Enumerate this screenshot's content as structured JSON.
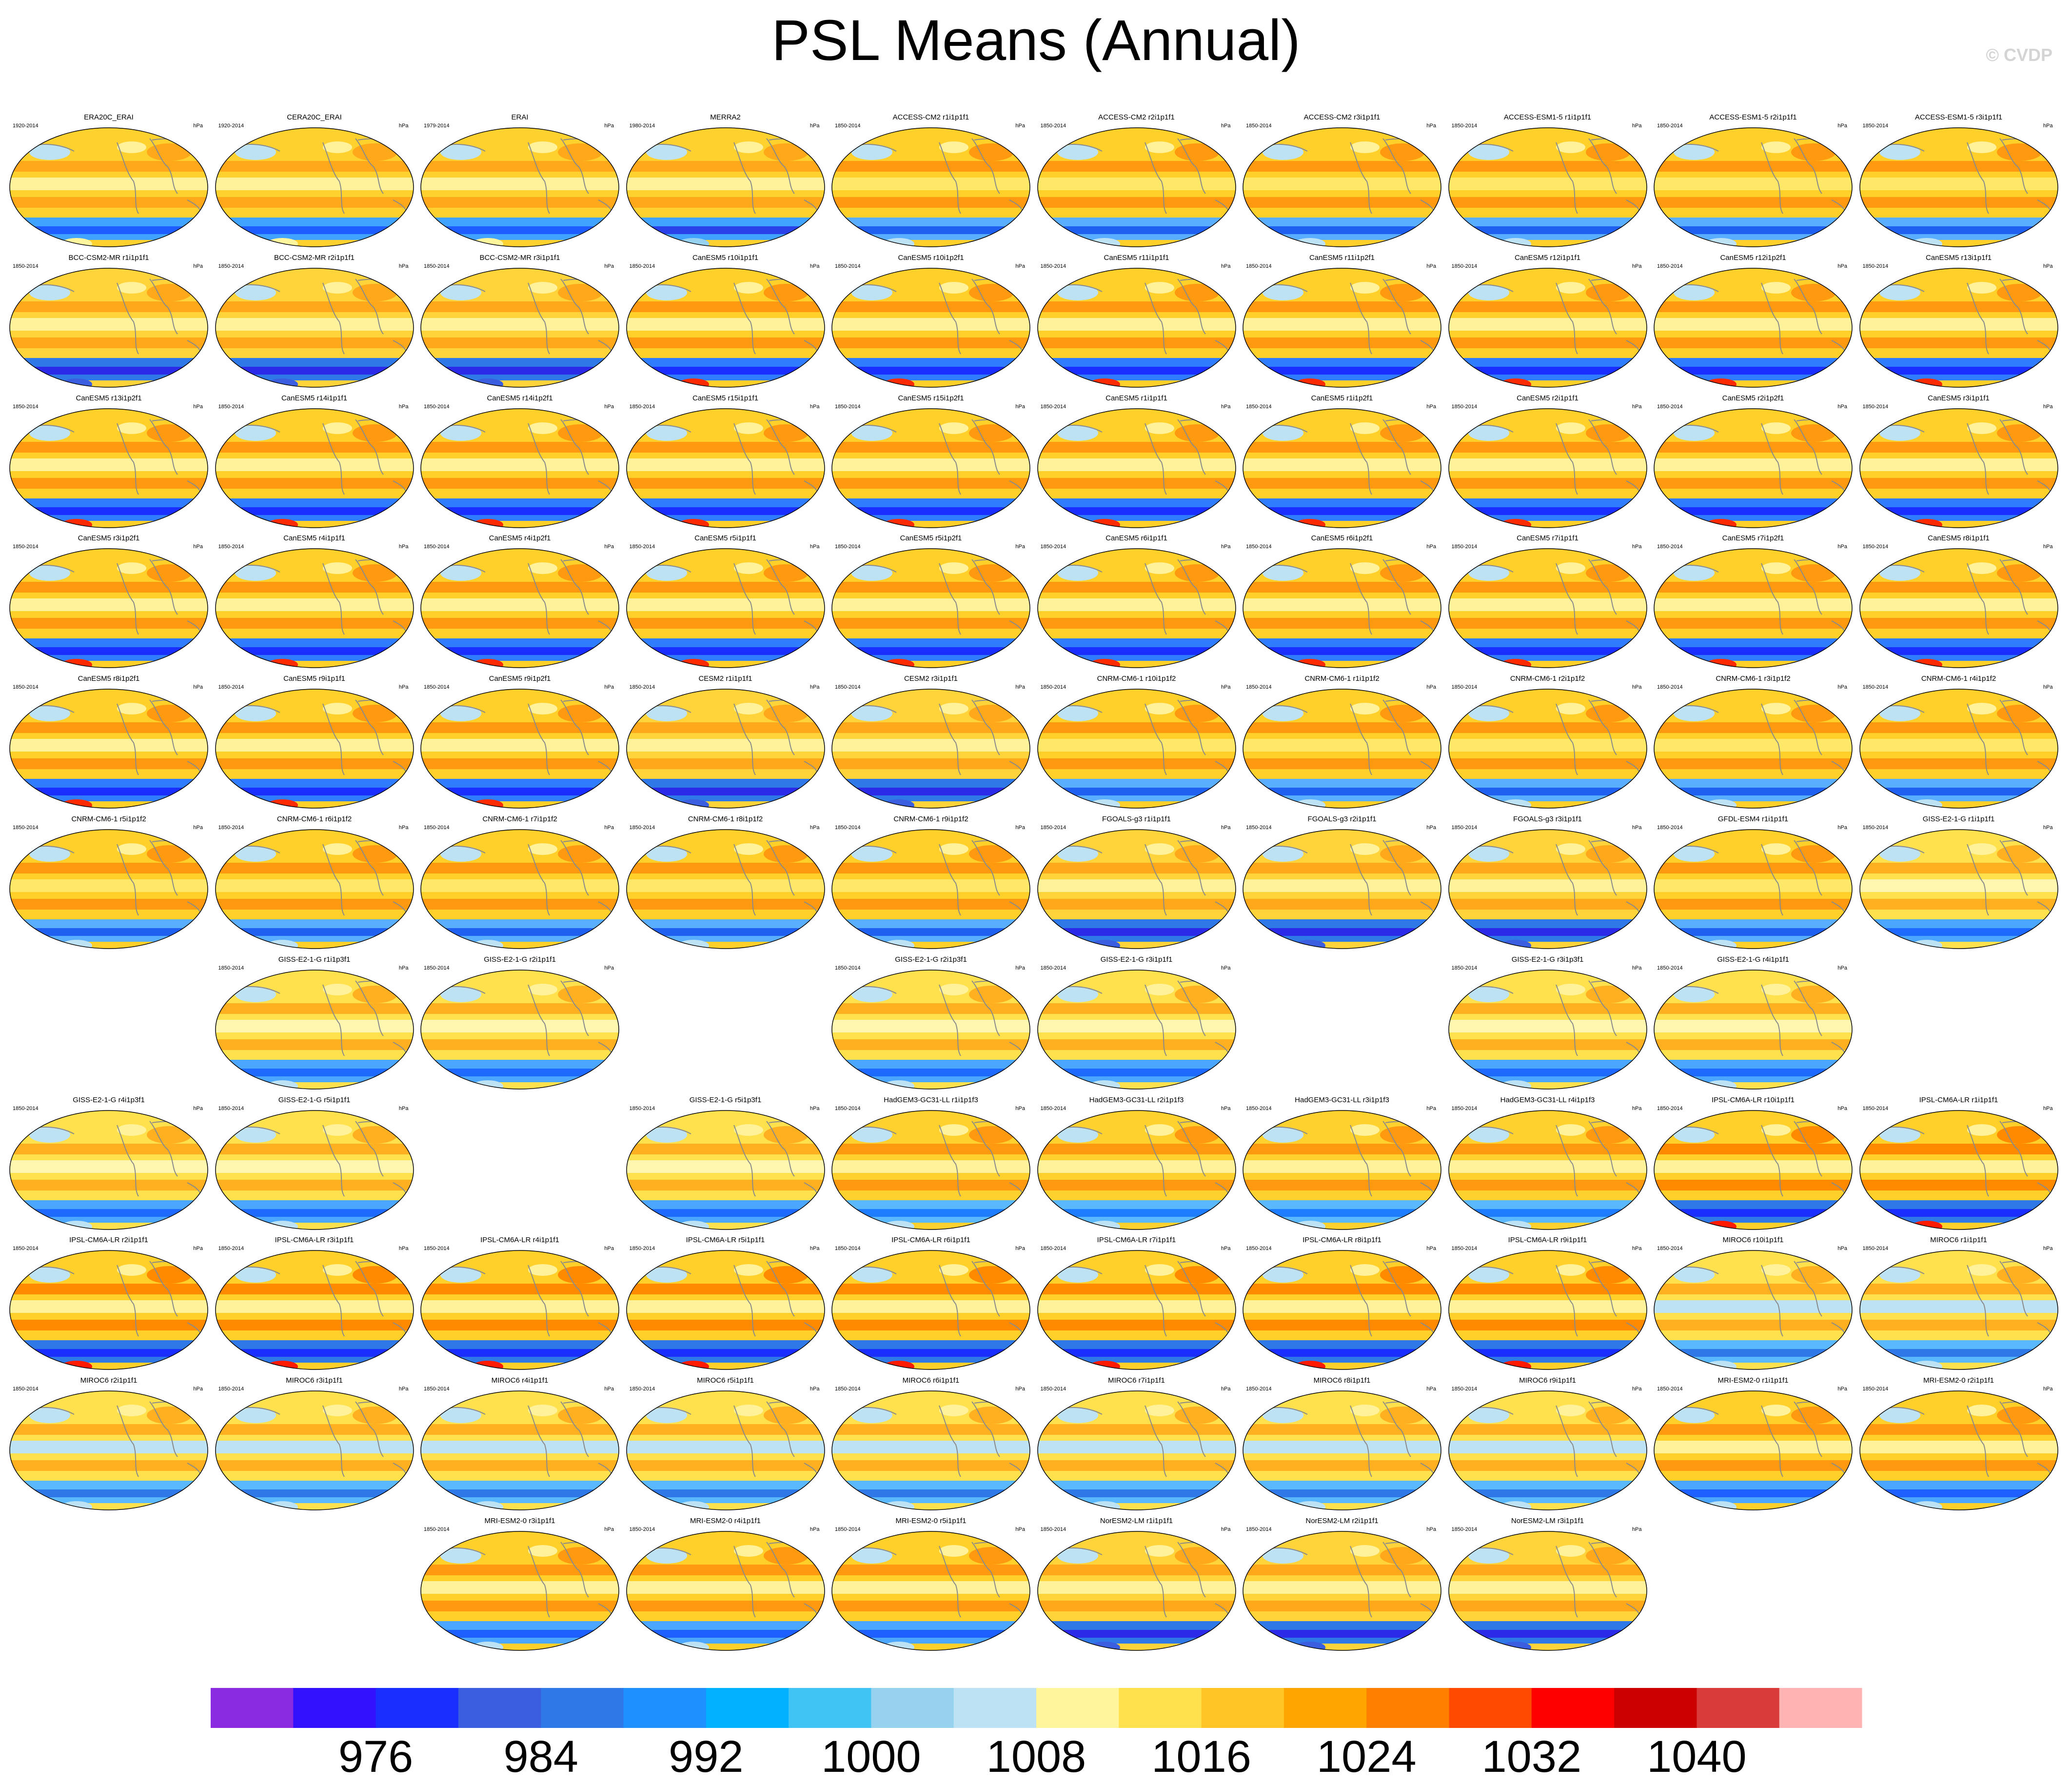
{
  "figure": {
    "title": "PSL Means (Annual)",
    "watermark": "© CVDP"
  },
  "chart_data": {
    "type": "heatmap",
    "title": "PSL Means (Annual)",
    "units": "hPa",
    "layout": "grid 11 rows x 10 columns of global map panels",
    "colorbar": {
      "tick_labels": [
        "976",
        "984",
        "992",
        "1000",
        "1008",
        "1016",
        "1024",
        "1032",
        "1040"
      ],
      "colors": [
        "#8a2be2",
        "#3311ff",
        "#1a2fff",
        "#3b5ee0",
        "#2f78e8",
        "#1e90ff",
        "#00b2ff",
        "#3fc4f4",
        "#96d2f0",
        "#bde2f4",
        "#fff59d",
        "#ffe14d",
        "#ffc425",
        "#ffa500",
        "#ff8000",
        "#ff4a00",
        "#ff0000",
        "#cc0000",
        "#d93a3a",
        "#ffb3b3"
      ]
    },
    "panels": [
      {
        "row": 0,
        "col": 0,
        "title": "ERA20C_ERAI",
        "years": "1920-2014",
        "units": "hPa",
        "style": "obs"
      },
      {
        "row": 0,
        "col": 1,
        "title": "CERA20C_ERAI",
        "years": "1920-2014",
        "units": "hPa",
        "style": "obs"
      },
      {
        "row": 0,
        "col": 2,
        "title": "ERAI",
        "years": "1979-2014",
        "units": "hPa",
        "style": "obs"
      },
      {
        "row": 0,
        "col": 3,
        "title": "MERRA2",
        "years": "1980-2014",
        "units": "hPa",
        "style": "obs2"
      },
      {
        "row": 0,
        "col": 4,
        "title": "ACCESS-CM2 r1i1p1f1",
        "years": "1850-2014",
        "units": "hPa",
        "style": "warm"
      },
      {
        "row": 0,
        "col": 5,
        "title": "ACCESS-CM2 r2i1p1f1",
        "years": "1850-2014",
        "units": "hPa",
        "style": "warm"
      },
      {
        "row": 0,
        "col": 6,
        "title": "ACCESS-CM2 r3i1p1f1",
        "years": "1850-2014",
        "units": "hPa",
        "style": "warm"
      },
      {
        "row": 0,
        "col": 7,
        "title": "ACCESS-ESM1-5 r1i1p1f1",
        "years": "1850-2014",
        "units": "hPa",
        "style": "warm"
      },
      {
        "row": 0,
        "col": 8,
        "title": "ACCESS-ESM1-5 r2i1p1f1",
        "years": "1850-2014",
        "units": "hPa",
        "style": "warm"
      },
      {
        "row": 0,
        "col": 9,
        "title": "ACCESS-ESM1-5 r3i1p1f1",
        "years": "1850-2014",
        "units": "hPa",
        "style": "warm"
      },
      {
        "row": 1,
        "col": 0,
        "title": "BCC-CSM2-MR r1i1p1f1",
        "years": "1850-2014",
        "units": "hPa",
        "style": "deep"
      },
      {
        "row": 1,
        "col": 1,
        "title": "BCC-CSM2-MR r2i1p1f1",
        "years": "1850-2014",
        "units": "hPa",
        "style": "deep"
      },
      {
        "row": 1,
        "col": 2,
        "title": "BCC-CSM2-MR r3i1p1f1",
        "years": "1850-2014",
        "units": "hPa",
        "style": "deep"
      },
      {
        "row": 1,
        "col": 3,
        "title": "CanESM5 r10i1p1f1",
        "years": "1850-2014",
        "units": "hPa",
        "style": "can"
      },
      {
        "row": 1,
        "col": 4,
        "title": "CanESM5 r10i1p2f1",
        "years": "1850-2014",
        "units": "hPa",
        "style": "can"
      },
      {
        "row": 1,
        "col": 5,
        "title": "CanESM5 r11i1p1f1",
        "years": "1850-2014",
        "units": "hPa",
        "style": "can"
      },
      {
        "row": 1,
        "col": 6,
        "title": "CanESM5 r11i1p2f1",
        "years": "1850-2014",
        "units": "hPa",
        "style": "can"
      },
      {
        "row": 1,
        "col": 7,
        "title": "CanESM5 r12i1p1f1",
        "years": "1850-2014",
        "units": "hPa",
        "style": "can"
      },
      {
        "row": 1,
        "col": 8,
        "title": "CanESM5 r12i1p2f1",
        "years": "1850-2014",
        "units": "hPa",
        "style": "can"
      },
      {
        "row": 1,
        "col": 9,
        "title": "CanESM5 r13i1p1f1",
        "years": "1850-2014",
        "units": "hPa",
        "style": "can"
      },
      {
        "row": 2,
        "col": 0,
        "title": "CanESM5 r13i1p2f1",
        "years": "1850-2014",
        "units": "hPa",
        "style": "can"
      },
      {
        "row": 2,
        "col": 1,
        "title": "CanESM5 r14i1p1f1",
        "years": "1850-2014",
        "units": "hPa",
        "style": "can"
      },
      {
        "row": 2,
        "col": 2,
        "title": "CanESM5 r14i1p2f1",
        "years": "1850-2014",
        "units": "hPa",
        "style": "can"
      },
      {
        "row": 2,
        "col": 3,
        "title": "CanESM5 r15i1p1f1",
        "years": "1850-2014",
        "units": "hPa",
        "style": "can"
      },
      {
        "row": 2,
        "col": 4,
        "title": "CanESM5 r15i1p2f1",
        "years": "1850-2014",
        "units": "hPa",
        "style": "can"
      },
      {
        "row": 2,
        "col": 5,
        "title": "CanESM5 r1i1p1f1",
        "years": "1850-2014",
        "units": "hPa",
        "style": "can"
      },
      {
        "row": 2,
        "col": 6,
        "title": "CanESM5 r1i1p2f1",
        "years": "1850-2014",
        "units": "hPa",
        "style": "can"
      },
      {
        "row": 2,
        "col": 7,
        "title": "CanESM5 r2i1p1f1",
        "years": "1850-2014",
        "units": "hPa",
        "style": "can"
      },
      {
        "row": 2,
        "col": 8,
        "title": "CanESM5 r2i1p2f1",
        "years": "1850-2014",
        "units": "hPa",
        "style": "can"
      },
      {
        "row": 2,
        "col": 9,
        "title": "CanESM5 r3i1p1f1",
        "years": "1850-2014",
        "units": "hPa",
        "style": "can"
      },
      {
        "row": 3,
        "col": 0,
        "title": "CanESM5 r3i1p2f1",
        "years": "1850-2014",
        "units": "hPa",
        "style": "can"
      },
      {
        "row": 3,
        "col": 1,
        "title": "CanESM5 r4i1p1f1",
        "years": "1850-2014",
        "units": "hPa",
        "style": "can"
      },
      {
        "row": 3,
        "col": 2,
        "title": "CanESM5 r4i1p2f1",
        "years": "1850-2014",
        "units": "hPa",
        "style": "can"
      },
      {
        "row": 3,
        "col": 3,
        "title": "CanESM5 r5i1p1f1",
        "years": "1850-2014",
        "units": "hPa",
        "style": "can"
      },
      {
        "row": 3,
        "col": 4,
        "title": "CanESM5 r5i1p2f1",
        "years": "1850-2014",
        "units": "hPa",
        "style": "can"
      },
      {
        "row": 3,
        "col": 5,
        "title": "CanESM5 r6i1p1f1",
        "years": "1850-2014",
        "units": "hPa",
        "style": "can"
      },
      {
        "row": 3,
        "col": 6,
        "title": "CanESM5 r6i1p2f1",
        "years": "1850-2014",
        "units": "hPa",
        "style": "can"
      },
      {
        "row": 3,
        "col": 7,
        "title": "CanESM5 r7i1p1f1",
        "years": "1850-2014",
        "units": "hPa",
        "style": "can"
      },
      {
        "row": 3,
        "col": 8,
        "title": "CanESM5 r7i1p2f1",
        "years": "1850-2014",
        "units": "hPa",
        "style": "can"
      },
      {
        "row": 3,
        "col": 9,
        "title": "CanESM5 r8i1p1f1",
        "years": "1850-2014",
        "units": "hPa",
        "style": "can"
      },
      {
        "row": 4,
        "col": 0,
        "title": "CanESM5 r8i1p2f1",
        "years": "1850-2014",
        "units": "hPa",
        "style": "can"
      },
      {
        "row": 4,
        "col": 1,
        "title": "CanESM5 r9i1p1f1",
        "years": "1850-2014",
        "units": "hPa",
        "style": "can"
      },
      {
        "row": 4,
        "col": 2,
        "title": "CanESM5 r9i1p2f1",
        "years": "1850-2014",
        "units": "hPa",
        "style": "can"
      },
      {
        "row": 4,
        "col": 3,
        "title": "CESM2 r1i1p1f1",
        "years": "1850-2014",
        "units": "hPa",
        "style": "deep"
      },
      {
        "row": 4,
        "col": 4,
        "title": "CESM2 r3i1p1f1",
        "years": "1850-2014",
        "units": "hPa",
        "style": "deep"
      },
      {
        "row": 4,
        "col": 5,
        "title": "CNRM-CM6-1 r10i1p1f2",
        "years": "1850-2014",
        "units": "hPa",
        "style": "warm"
      },
      {
        "row": 4,
        "col": 6,
        "title": "CNRM-CM6-1 r1i1p1f2",
        "years": "1850-2014",
        "units": "hPa",
        "style": "warm"
      },
      {
        "row": 4,
        "col": 7,
        "title": "CNRM-CM6-1 r2i1p1f2",
        "years": "1850-2014",
        "units": "hPa",
        "style": "warm"
      },
      {
        "row": 4,
        "col": 8,
        "title": "CNRM-CM6-1 r3i1p1f2",
        "years": "1850-2014",
        "units": "hPa",
        "style": "warm"
      },
      {
        "row": 4,
        "col": 9,
        "title": "CNRM-CM6-1 r4i1p1f2",
        "years": "1850-2014",
        "units": "hPa",
        "style": "warm"
      },
      {
        "row": 5,
        "col": 0,
        "title": "CNRM-CM6-1 r5i1p1f2",
        "years": "1850-2014",
        "units": "hPa",
        "style": "warm"
      },
      {
        "row": 5,
        "col": 1,
        "title": "CNRM-CM6-1 r6i1p1f2",
        "years": "1850-2014",
        "units": "hPa",
        "style": "warm"
      },
      {
        "row": 5,
        "col": 2,
        "title": "CNRM-CM6-1 r7i1p1f2",
        "years": "1850-2014",
        "units": "hPa",
        "style": "warm"
      },
      {
        "row": 5,
        "col": 3,
        "title": "CNRM-CM6-1 r8i1p1f2",
        "years": "1850-2014",
        "units": "hPa",
        "style": "warm"
      },
      {
        "row": 5,
        "col": 4,
        "title": "CNRM-CM6-1 r9i1p1f2",
        "years": "1850-2014",
        "units": "hPa",
        "style": "warm"
      },
      {
        "row": 5,
        "col": 5,
        "title": "FGOALS-g3 r1i1p1f1",
        "years": "1850-2014",
        "units": "hPa",
        "style": "deep"
      },
      {
        "row": 5,
        "col": 6,
        "title": "FGOALS-g3 r2i1p1f1",
        "years": "1850-2014",
        "units": "hPa",
        "style": "deep"
      },
      {
        "row": 5,
        "col": 7,
        "title": "FGOALS-g3 r3i1p1f1",
        "years": "1850-2014",
        "units": "hPa",
        "style": "deep"
      },
      {
        "row": 5,
        "col": 8,
        "title": "GFDL-ESM4 r1i1p1f1",
        "years": "1850-2014",
        "units": "hPa",
        "style": "warm"
      },
      {
        "row": 5,
        "col": 9,
        "title": "GISS-E2-1-G r1i1p1f1",
        "years": "1850-2014",
        "units": "hPa",
        "style": "giss"
      },
      {
        "row": 6,
        "col": 1,
        "title": "GISS-E2-1-G r1i1p3f1",
        "years": "1850-2014",
        "units": "hPa",
        "style": "giss"
      },
      {
        "row": 6,
        "col": 2,
        "title": "GISS-E2-1-G r2i1p1f1",
        "years": "1850-2014",
        "units": "hPa",
        "style": "giss"
      },
      {
        "row": 6,
        "col": 4,
        "title": "GISS-E2-1-G r2i1p3f1",
        "years": "1850-2014",
        "units": "hPa",
        "style": "giss"
      },
      {
        "row": 6,
        "col": 5,
        "title": "GISS-E2-1-G r3i1p1f1",
        "years": "1850-2014",
        "units": "hPa",
        "style": "giss"
      },
      {
        "row": 6,
        "col": 7,
        "title": "GISS-E2-1-G r3i1p3f1",
        "years": "1850-2014",
        "units": "hPa",
        "style": "giss"
      },
      {
        "row": 6,
        "col": 8,
        "title": "GISS-E2-1-G r4i1p1f1",
        "years": "1850-2014",
        "units": "hPa",
        "style": "giss"
      },
      {
        "row": 7,
        "col": 0,
        "title": "GISS-E2-1-G r4i1p3f1",
        "years": "1850-2014",
        "units": "hPa",
        "style": "giss"
      },
      {
        "row": 7,
        "col": 1,
        "title": "GISS-E2-1-G r5i1p1f1",
        "years": "1850-2014",
        "units": "hPa",
        "style": "giss"
      },
      {
        "row": 7,
        "col": 3,
        "title": "GISS-E2-1-G r5i1p3f1",
        "years": "1850-2014",
        "units": "hPa",
        "style": "giss"
      },
      {
        "row": 7,
        "col": 4,
        "title": "HadGEM3-GC31-LL r1i1p1f3",
        "years": "1850-2014",
        "units": "hPa",
        "style": "had"
      },
      {
        "row": 7,
        "col": 5,
        "title": "HadGEM3-GC31-LL r2i1p1f3",
        "years": "1850-2014",
        "units": "hPa",
        "style": "had"
      },
      {
        "row": 7,
        "col": 6,
        "title": "HadGEM3-GC31-LL r3i1p1f3",
        "years": "1850-2014",
        "units": "hPa",
        "style": "had"
      },
      {
        "row": 7,
        "col": 7,
        "title": "HadGEM3-GC31-LL r4i1p1f3",
        "years": "1850-2014",
        "units": "hPa",
        "style": "had"
      },
      {
        "row": 7,
        "col": 8,
        "title": "IPSL-CM6A-LR r10i1p1f1",
        "years": "1850-2014",
        "units": "hPa",
        "style": "ipsl"
      },
      {
        "row": 7,
        "col": 9,
        "title": "IPSL-CM6A-LR r1i1p1f1",
        "years": "1850-2014",
        "units": "hPa",
        "style": "ipsl"
      },
      {
        "row": 8,
        "col": 0,
        "title": "IPSL-CM6A-LR r2i1p1f1",
        "years": "1850-2014",
        "units": "hPa",
        "style": "ipsl"
      },
      {
        "row": 8,
        "col": 1,
        "title": "IPSL-CM6A-LR r3i1p1f1",
        "years": "1850-2014",
        "units": "hPa",
        "style": "ipsl"
      },
      {
        "row": 8,
        "col": 2,
        "title": "IPSL-CM6A-LR r4i1p1f1",
        "years": "1850-2014",
        "units": "hPa",
        "style": "ipsl"
      },
      {
        "row": 8,
        "col": 3,
        "title": "IPSL-CM6A-LR r5i1p1f1",
        "years": "1850-2014",
        "units": "hPa",
        "style": "ipsl"
      },
      {
        "row": 8,
        "col": 4,
        "title": "IPSL-CM6A-LR r6i1p1f1",
        "years": "1850-2014",
        "units": "hPa",
        "style": "ipsl"
      },
      {
        "row": 8,
        "col": 5,
        "title": "IPSL-CM6A-LR r7i1p1f1",
        "years": "1850-2014",
        "units": "hPa",
        "style": "ipsl"
      },
      {
        "row": 8,
        "col": 6,
        "title": "IPSL-CM6A-LR r8i1p1f1",
        "years": "1850-2014",
        "units": "hPa",
        "style": "ipsl"
      },
      {
        "row": 8,
        "col": 7,
        "title": "IPSL-CM6A-LR r9i1p1f1",
        "years": "1850-2014",
        "units": "hPa",
        "style": "ipsl"
      },
      {
        "row": 8,
        "col": 8,
        "title": "MIROC6 r10i1p1f1",
        "years": "1850-2014",
        "units": "hPa",
        "style": "miroc"
      },
      {
        "row": 8,
        "col": 9,
        "title": "MIROC6 r1i1p1f1",
        "years": "1850-2014",
        "units": "hPa",
        "style": "miroc"
      },
      {
        "row": 9,
        "col": 0,
        "title": "MIROC6 r2i1p1f1",
        "years": "1850-2014",
        "units": "hPa",
        "style": "miroc"
      },
      {
        "row": 9,
        "col": 1,
        "title": "MIROC6 r3i1p1f1",
        "years": "1850-2014",
        "units": "hPa",
        "style": "miroc"
      },
      {
        "row": 9,
        "col": 2,
        "title": "MIROC6 r4i1p1f1",
        "years": "1850-2014",
        "units": "hPa",
        "style": "miroc"
      },
      {
        "row": 9,
        "col": 3,
        "title": "MIROC6 r5i1p1f1",
        "years": "1850-2014",
        "units": "hPa",
        "style": "miroc"
      },
      {
        "row": 9,
        "col": 4,
        "title": "MIROC6 r6i1p1f1",
        "years": "1850-2014",
        "units": "hPa",
        "style": "miroc"
      },
      {
        "row": 9,
        "col": 5,
        "title": "MIROC6 r7i1p1f1",
        "years": "1850-2014",
        "units": "hPa",
        "style": "miroc"
      },
      {
        "row": 9,
        "col": 6,
        "title": "MIROC6 r8i1p1f1",
        "years": "1850-2014",
        "units": "hPa",
        "style": "miroc"
      },
      {
        "row": 9,
        "col": 7,
        "title": "MIROC6 r9i1p1f1",
        "years": "1850-2014",
        "units": "hPa",
        "style": "miroc"
      },
      {
        "row": 9,
        "col": 8,
        "title": "MRI-ESM2-0 r1i1p1f1",
        "years": "1850-2014",
        "units": "hPa",
        "style": "mri"
      },
      {
        "row": 9,
        "col": 9,
        "title": "MRI-ESM2-0 r2i1p1f1",
        "years": "1850-2014",
        "units": "hPa",
        "style": "mri"
      },
      {
        "row": 10,
        "col": 2,
        "title": "MRI-ESM2-0 r3i1p1f1",
        "years": "1850-2014",
        "units": "hPa",
        "style": "mri"
      },
      {
        "row": 10,
        "col": 3,
        "title": "MRI-ESM2-0 r4i1p1f1",
        "years": "1850-2014",
        "units": "hPa",
        "style": "mri"
      },
      {
        "row": 10,
        "col": 4,
        "title": "MRI-ESM2-0 r5i1p1f1",
        "years": "1850-2014",
        "units": "hPa",
        "style": "mri"
      },
      {
        "row": 10,
        "col": 5,
        "title": "NorESM2-LM r1i1p1f1",
        "years": "1850-2014",
        "units": "hPa",
        "style": "deep"
      },
      {
        "row": 10,
        "col": 6,
        "title": "NorESM2-LM r2i1p1f1",
        "years": "1850-2014",
        "units": "hPa",
        "style": "deep"
      },
      {
        "row": 10,
        "col": 7,
        "title": "NorESM2-LM r3i1p1f1",
        "years": "1850-2014",
        "units": "hPa",
        "style": "deep"
      }
    ]
  }
}
